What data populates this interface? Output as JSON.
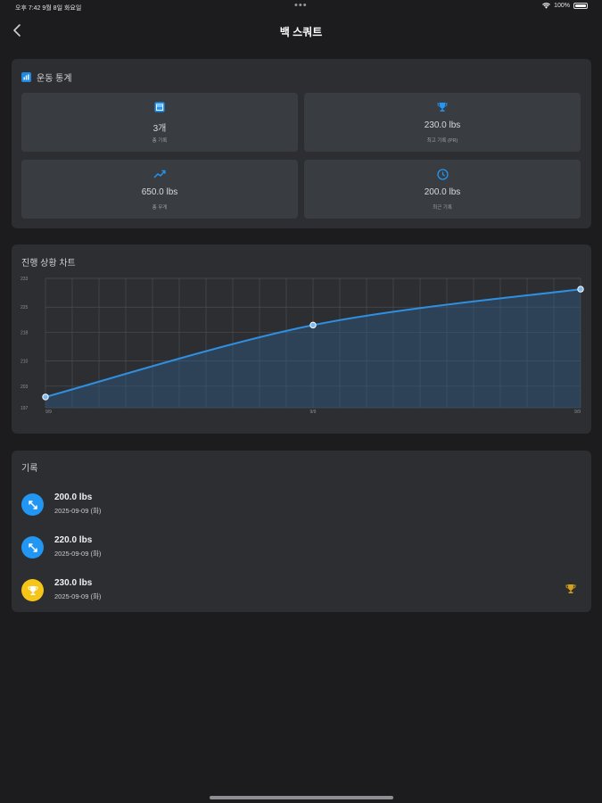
{
  "status": {
    "time": "오후 7:42",
    "date": "9월 8일 화요일",
    "dots": "•••",
    "battery": "100%"
  },
  "nav": {
    "title": "백 스쿼트"
  },
  "stats": {
    "title": "운동 통계",
    "tiles": [
      {
        "icon": "calendar-icon",
        "value": "3개",
        "label": "총 기록"
      },
      {
        "icon": "trophy-icon",
        "value": "230.0 lbs",
        "label": "최고 기록 (PR)"
      },
      {
        "icon": "trending-up-icon",
        "value": "650.0 lbs",
        "label": "총 무게"
      },
      {
        "icon": "clock-icon",
        "value": "200.0 lbs",
        "label": "최근 기록"
      }
    ]
  },
  "chart": {
    "title": "진행 상황 차트",
    "chart_data": {
      "type": "area",
      "x": [
        "9/9",
        "9/9",
        "9/9"
      ],
      "values": [
        200,
        220,
        230
      ],
      "yticks": [
        "197",
        "203",
        "210",
        "218",
        "225",
        "233"
      ],
      "ylim": [
        197,
        233
      ],
      "grid": true,
      "colors": {
        "line": "#2f8fe0",
        "fill": "#2f5a86",
        "point": "#7fb8ec"
      }
    }
  },
  "records": {
    "title": "기록",
    "items": [
      {
        "weight": "200.0 lbs",
        "date": "2025-09-09 (화)",
        "type": "normal",
        "color": "#2196f3"
      },
      {
        "weight": "220.0 lbs",
        "date": "2025-09-09 (화)",
        "type": "normal",
        "color": "#2196f3"
      },
      {
        "weight": "230.0 lbs",
        "date": "2025-09-09 (화)",
        "type": "pr",
        "color": "#f5c518"
      }
    ]
  }
}
